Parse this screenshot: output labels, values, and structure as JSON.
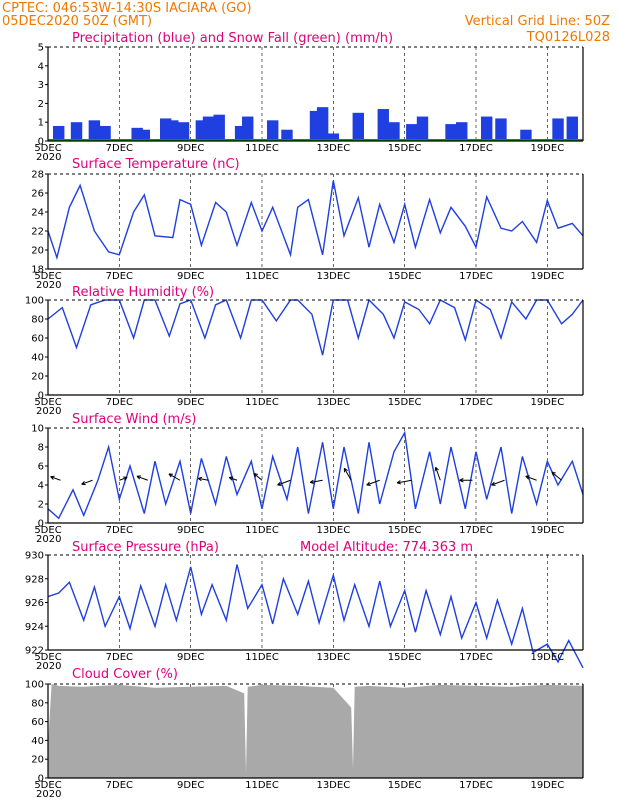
{
  "header": {
    "line1": "CPTEC:   046:53W-14:30S   IACIARA (GO)",
    "line2": "05DEC2020 50Z (GMT)",
    "grid_note": "Vertical Grid Line: 50Z",
    "model_id": "TQ0126L028"
  },
  "colors": {
    "header_text": "#f07800",
    "panel_title": "#e0007a",
    "line": "#1f3fe0",
    "precip": "#1f3fe0",
    "snow": "#00a000",
    "cloud": "#a9a9a9",
    "arrow": "#000000",
    "grid": "#000000"
  },
  "x_axis": {
    "dates": [
      "5DEC",
      "7DEC",
      "9DEC",
      "11DEC",
      "13DEC",
      "15DEC",
      "17DEC",
      "19DEC"
    ],
    "day_range": [
      5,
      20
    ],
    "year_fragment": "2020"
  },
  "chart_data": [
    {
      "type": "bar",
      "title": "Precipitation (blue) and Snow Fall (green) (mm/h)",
      "ylim": [
        0,
        5
      ],
      "yticks": [
        0,
        1,
        2,
        3,
        4,
        5
      ],
      "grid": "vertical dashed",
      "series": [
        {
          "name": "Precipitation",
          "x_days": [
            5.3,
            5.8,
            6.3,
            6.6,
            7.5,
            7.7,
            8.3,
            8.5,
            8.8,
            9.3,
            9.5,
            9.8,
            10.4,
            10.6,
            11.3,
            11.7,
            12.5,
            12.7,
            13.0,
            13.7,
            14.4,
            14.7,
            15.2,
            15.5,
            16.3,
            16.6,
            17.3,
            17.7,
            18.4,
            19.3,
            19.7
          ],
          "values": [
            0.8,
            1.0,
            1.1,
            0.8,
            0.7,
            0.6,
            1.2,
            1.1,
            1.0,
            1.1,
            1.3,
            1.4,
            0.8,
            1.3,
            1.1,
            0.6,
            1.6,
            1.8,
            0.4,
            1.5,
            1.7,
            1.0,
            0.9,
            1.3,
            0.9,
            1.0,
            1.3,
            1.2,
            0.6,
            1.2,
            1.3
          ]
        },
        {
          "name": "Snow Fall",
          "x_days": [
            5.0,
            20.0
          ],
          "values": [
            0,
            0
          ]
        }
      ]
    },
    {
      "type": "line",
      "title": "Surface Temperature (nC)",
      "ylim": [
        18,
        28
      ],
      "yticks": [
        18,
        20,
        22,
        24,
        26,
        28
      ],
      "x_days": [
        5.0,
        5.25,
        5.6,
        5.9,
        6.3,
        6.7,
        7.0,
        7.4,
        7.7,
        8.0,
        8.5,
        8.7,
        9.0,
        9.3,
        9.7,
        10.0,
        10.3,
        10.7,
        11.0,
        11.3,
        11.8,
        12.0,
        12.3,
        12.7,
        13.0,
        13.3,
        13.7,
        14.0,
        14.3,
        14.7,
        15.0,
        15.3,
        15.7,
        16.0,
        16.3,
        16.7,
        17.0,
        17.3,
        17.7,
        18.0,
        18.3,
        18.7,
        19.0,
        19.3,
        19.7,
        20.0
      ],
      "values": [
        22.0,
        19.2,
        24.5,
        26.8,
        22.0,
        19.8,
        19.5,
        24.0,
        25.8,
        21.5,
        21.3,
        25.3,
        24.8,
        20.5,
        25.0,
        24.0,
        20.5,
        25.0,
        22.0,
        24.5,
        19.5,
        24.5,
        25.3,
        19.5,
        27.3,
        21.5,
        25.5,
        20.3,
        24.8,
        20.8,
        24.8,
        20.3,
        25.3,
        21.8,
        24.5,
        22.5,
        20.3,
        25.6,
        22.3,
        22.0,
        23.0,
        20.8,
        25.2,
        22.3,
        22.8,
        21.5
      ]
    },
    {
      "type": "line",
      "title": "Relative Humidity (%)",
      "ylim": [
        0,
        100
      ],
      "yticks": [
        0,
        20,
        40,
        60,
        80,
        100
      ],
      "x_days": [
        5.0,
        5.4,
        5.8,
        6.2,
        6.6,
        7.0,
        7.4,
        7.7,
        8.0,
        8.4,
        8.7,
        9.0,
        9.4,
        9.7,
        10.0,
        10.4,
        10.7,
        11.0,
        11.4,
        11.8,
        12.0,
        12.4,
        12.7,
        13.0,
        13.4,
        13.7,
        14.0,
        14.4,
        14.7,
        15.0,
        15.4,
        15.7,
        16.0,
        16.4,
        16.7,
        17.0,
        17.4,
        17.7,
        18.0,
        18.4,
        18.7,
        19.0,
        19.4,
        19.7,
        20.0
      ],
      "values": [
        80,
        92,
        50,
        95,
        100,
        100,
        60,
        100,
        100,
        62,
        96,
        100,
        60,
        95,
        100,
        60,
        100,
        100,
        78,
        100,
        100,
        85,
        42,
        100,
        100,
        60,
        100,
        85,
        60,
        98,
        90,
        75,
        100,
        92,
        58,
        100,
        90,
        60,
        98,
        80,
        100,
        100,
        75,
        85,
        100
      ]
    },
    {
      "type": "line",
      "title": "Surface Wind (m/s)",
      "ylim": [
        0,
        10
      ],
      "yticks": [
        0,
        2,
        4,
        6,
        8,
        10
      ],
      "x_days": [
        5.0,
        5.3,
        5.7,
        6.0,
        6.4,
        6.7,
        7.0,
        7.3,
        7.7,
        8.0,
        8.3,
        8.7,
        9.0,
        9.3,
        9.7,
        10.0,
        10.3,
        10.7,
        11.0,
        11.3,
        11.7,
        12.0,
        12.3,
        12.7,
        13.0,
        13.3,
        13.7,
        14.0,
        14.3,
        14.7,
        15.0,
        15.3,
        15.7,
        16.0,
        16.3,
        16.7,
        17.0,
        17.3,
        17.7,
        18.0,
        18.3,
        18.7,
        19.0,
        19.3,
        19.7,
        20.0
      ],
      "values": [
        1.5,
        0.5,
        3.5,
        0.8,
        4.5,
        8.0,
        2.5,
        6.0,
        1.0,
        6.5,
        2.0,
        6.5,
        1.0,
        6.8,
        2.0,
        7.0,
        3.0,
        6.5,
        1.5,
        7.0,
        2.5,
        8.0,
        1.0,
        8.5,
        1.5,
        8.0,
        1.0,
        8.5,
        2.0,
        7.5,
        9.5,
        1.5,
        7.5,
        2.0,
        8.0,
        1.5,
        7.5,
        2.5,
        8.0,
        1.0,
        7.0,
        2.0,
        6.5,
        4.0,
        6.5,
        3.0
      ],
      "vectors": {
        "x_days": [
          5.35,
          6.25,
          7.0,
          7.8,
          8.7,
          9.5,
          10.3,
          11.0,
          11.8,
          12.7,
          13.5,
          14.3,
          15.2,
          16.0,
          16.9,
          17.8,
          18.7,
          19.4
        ],
        "speed": [
          2.5,
          3.0,
          1.5,
          3.0,
          3.5,
          2.5,
          1.5,
          2.5,
          4.0,
          3.5,
          4.0,
          4.0,
          4.5,
          4.0,
          3.5,
          4.0,
          3.0,
          3.5
        ],
        "dir_deg": [
          160,
          200,
          20,
          160,
          150,
          170,
          160,
          140,
          200,
          190,
          120,
          200,
          190,
          110,
          180,
          200,
          160,
          140
        ]
      }
    },
    {
      "type": "line",
      "title": "Surface Pressure (hPa)",
      "annotation": "Model Altitude: 774.363  m",
      "ylim": [
        922,
        930
      ],
      "yticks": [
        922,
        924,
        926,
        928,
        930
      ],
      "x_days": [
        5.0,
        5.3,
        5.6,
        6.0,
        6.3,
        6.6,
        7.0,
        7.3,
        7.6,
        8.0,
        8.3,
        8.6,
        9.0,
        9.3,
        9.6,
        10.0,
        10.3,
        10.6,
        11.0,
        11.3,
        11.6,
        12.0,
        12.3,
        12.6,
        13.0,
        13.3,
        13.6,
        14.0,
        14.3,
        14.6,
        15.0,
        15.3,
        15.6,
        16.0,
        16.3,
        16.6,
        17.0,
        17.3,
        17.6,
        18.0,
        18.3,
        18.6,
        19.0,
        19.3,
        19.6,
        20.0
      ],
      "values": [
        926.5,
        926.8,
        927.7,
        924.5,
        927.3,
        924.0,
        926.5,
        923.8,
        927.4,
        924.0,
        927.5,
        924.5,
        929.0,
        925.0,
        927.5,
        924.5,
        929.2,
        925.5,
        927.5,
        924.2,
        928.0,
        925.0,
        927.8,
        924.3,
        928.3,
        924.5,
        927.5,
        924.0,
        927.8,
        924.0,
        927.0,
        923.5,
        927.0,
        923.3,
        926.5,
        923.0,
        926.0,
        923.0,
        926.2,
        922.5,
        925.5,
        921.8,
        922.5,
        921.0,
        922.8,
        920.5
      ]
    },
    {
      "type": "area",
      "title": "Cloud Cover (%)",
      "ylim": [
        0,
        100
      ],
      "yticks": [
        0,
        20,
        40,
        60,
        80,
        100
      ],
      "x_days": [
        5.0,
        5.1,
        5.3,
        6.0,
        7.0,
        8.0,
        9.0,
        10.0,
        10.5,
        10.55,
        10.6,
        11.0,
        12.0,
        13.0,
        13.5,
        13.55,
        13.6,
        14.0,
        15.0,
        16.0,
        17.0,
        18.0,
        19.0,
        20.0
      ],
      "values": [
        35,
        100,
        98,
        97,
        99,
        96,
        97,
        98,
        90,
        5,
        97,
        99,
        98,
        96,
        75,
        10,
        97,
        98,
        96,
        99,
        98,
        97,
        99,
        98
      ]
    }
  ]
}
